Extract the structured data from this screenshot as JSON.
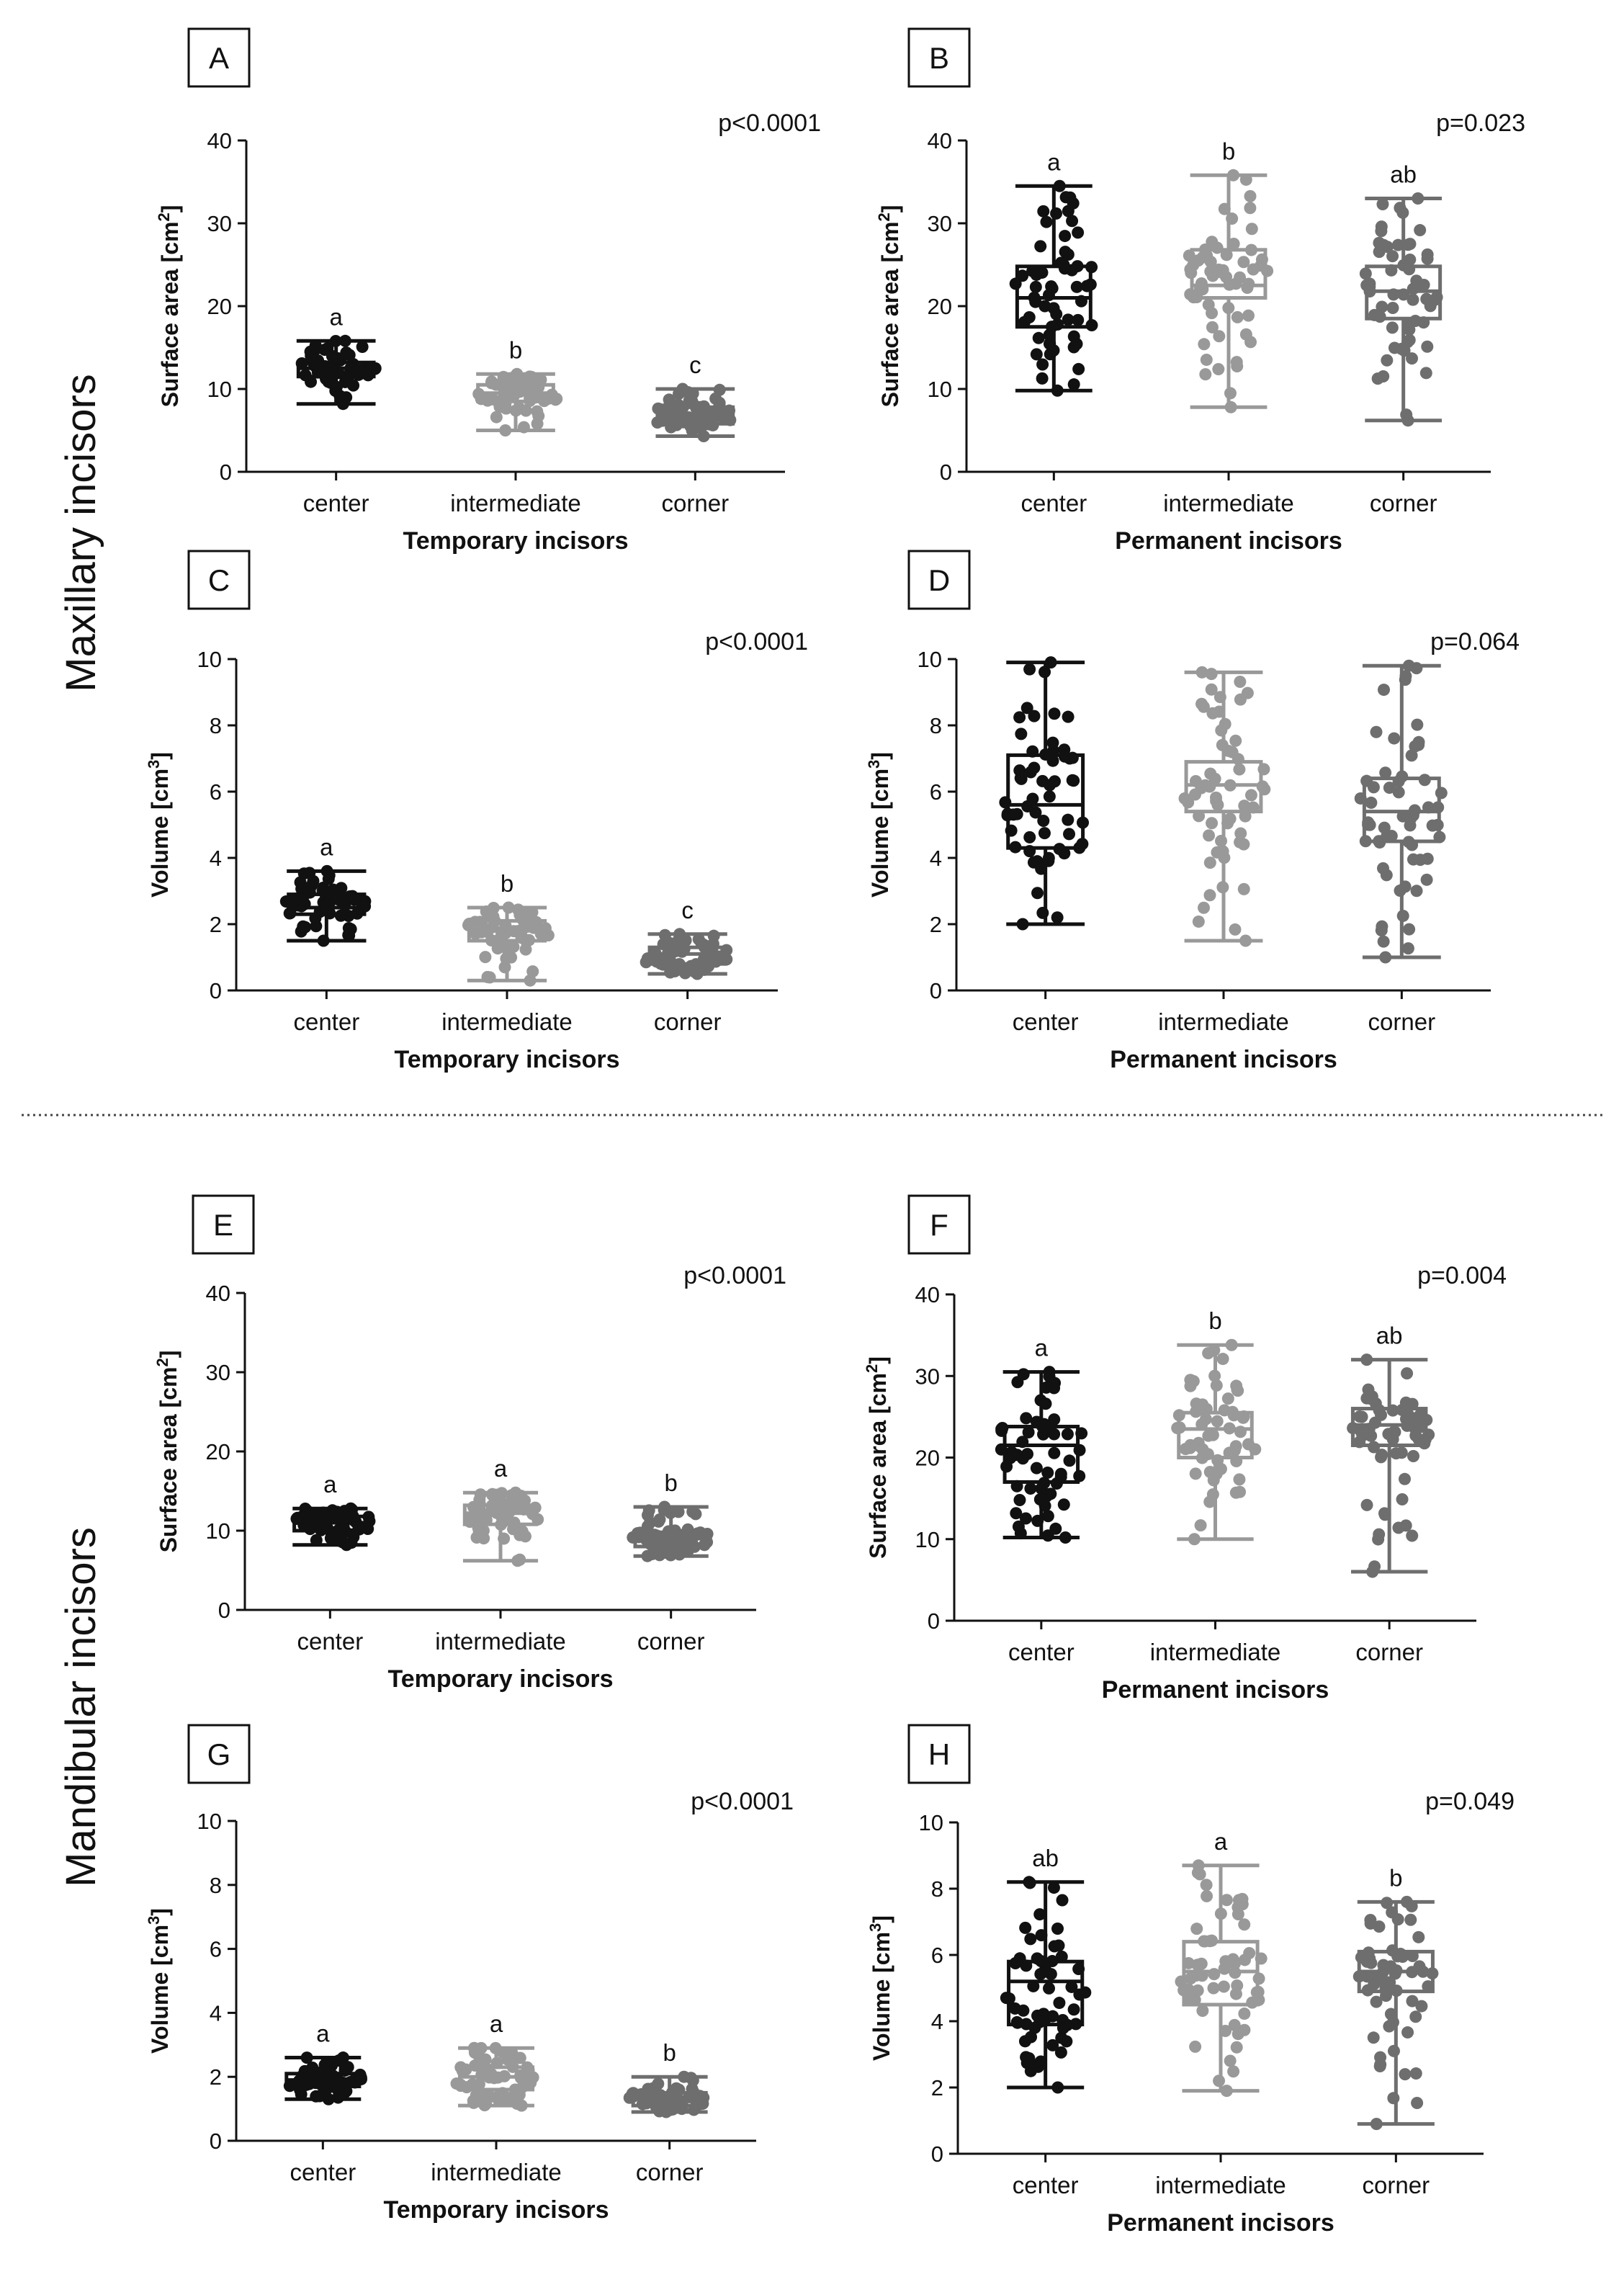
{
  "section_labels": {
    "maxillary": "Maxillary incisors",
    "mandibular": "Mandibular incisors"
  },
  "colors": {
    "center": "#111111",
    "intermediate": "#999999",
    "corner": "#6e6e6e"
  },
  "chart_data": [
    {
      "panel": "A",
      "type": "box-scatter",
      "p_value": "p<0.0001",
      "ylabel": "Surface area [cm",
      "ylabel_sup": "2",
      "ylabel_close": "]",
      "xlabel": "Temporary incisors",
      "categories": [
        "center",
        "intermediate",
        "corner"
      ],
      "ylim": [
        0,
        40
      ],
      "yticks": [
        0,
        10,
        20,
        30,
        40
      ],
      "letters": [
        "a",
        "b",
        "c"
      ],
      "series": [
        {
          "name": "center",
          "min": 8.2,
          "q1": 11.5,
          "median": 12.5,
          "q3": 13.2,
          "max": 15.8
        },
        {
          "name": "intermediate",
          "min": 5.0,
          "q1": 8.5,
          "median": 9.5,
          "q3": 10.5,
          "max": 11.8
        },
        {
          "name": "corner",
          "min": 4.3,
          "q1": 5.8,
          "median": 6.5,
          "q3": 7.8,
          "max": 10.0
        }
      ]
    },
    {
      "panel": "B",
      "type": "box-scatter",
      "p_value": "p=0.023",
      "ylabel": "Surface area [cm",
      "ylabel_sup": "2",
      "ylabel_close": "]",
      "xlabel": "Permanent incisors",
      "categories": [
        "center",
        "intermediate",
        "corner"
      ],
      "ylim": [
        0,
        40
      ],
      "yticks": [
        0,
        10,
        20,
        30,
        40
      ],
      "letters": [
        "a",
        "b",
        "ab"
      ],
      "series": [
        {
          "name": "center",
          "min": 9.8,
          "q1": 17.5,
          "median": 21.0,
          "q3": 24.8,
          "max": 34.5
        },
        {
          "name": "intermediate",
          "min": 7.8,
          "q1": 21.0,
          "median": 22.5,
          "q3": 26.8,
          "max": 35.8
        },
        {
          "name": "corner",
          "min": 6.2,
          "q1": 18.5,
          "median": 21.8,
          "q3": 24.8,
          "max": 33.0
        }
      ]
    },
    {
      "panel": "C",
      "type": "box-scatter",
      "p_value": "p<0.0001",
      "ylabel": "Volume [cm",
      "ylabel_sup": "3",
      "ylabel_close": "]",
      "xlabel": "Temporary incisors",
      "categories": [
        "center",
        "intermediate",
        "corner"
      ],
      "ylim": [
        0,
        10
      ],
      "yticks": [
        0,
        2,
        4,
        6,
        8,
        10
      ],
      "letters": [
        "a",
        "b",
        "c"
      ],
      "series": [
        {
          "name": "center",
          "min": 1.5,
          "q1": 2.3,
          "median": 2.5,
          "q3": 2.9,
          "max": 3.6
        },
        {
          "name": "intermediate",
          "min": 0.3,
          "q1": 1.5,
          "median": 1.8,
          "q3": 2.1,
          "max": 2.5
        },
        {
          "name": "corner",
          "min": 0.5,
          "q1": 0.8,
          "median": 1.1,
          "q3": 1.3,
          "max": 1.7
        }
      ]
    },
    {
      "panel": "D",
      "type": "box-scatter",
      "p_value": "p=0.064",
      "ylabel": "Volume [cm",
      "ylabel_sup": "3",
      "ylabel_close": "]",
      "xlabel": "Permanent incisors",
      "categories": [
        "center",
        "intermediate",
        "corner"
      ],
      "ylim": [
        0,
        10
      ],
      "yticks": [
        0,
        2,
        4,
        6,
        8,
        10
      ],
      "letters": [
        "",
        "",
        ""
      ],
      "series": [
        {
          "name": "center",
          "min": 2.0,
          "q1": 4.3,
          "median": 5.6,
          "q3": 7.1,
          "max": 9.9
        },
        {
          "name": "intermediate",
          "min": 1.5,
          "q1": 5.4,
          "median": 6.2,
          "q3": 6.9,
          "max": 9.6
        },
        {
          "name": "corner",
          "min": 1.0,
          "q1": 4.5,
          "median": 5.4,
          "q3": 6.4,
          "max": 9.8
        }
      ]
    },
    {
      "panel": "E",
      "type": "box-scatter",
      "p_value": "p<0.0001",
      "ylabel": "Surface area [cm",
      "ylabel_sup": "2",
      "ylabel_close": "]",
      "xlabel": "Temporary incisors",
      "categories": [
        "center",
        "intermediate",
        "corner"
      ],
      "ylim": [
        0,
        40
      ],
      "yticks": [
        0,
        10,
        20,
        30,
        40
      ],
      "letters": [
        "a",
        "a",
        "b"
      ],
      "series": [
        {
          "name": "center",
          "min": 8.2,
          "q1": 10.0,
          "median": 11.0,
          "q3": 11.8,
          "max": 12.8
        },
        {
          "name": "intermediate",
          "min": 6.2,
          "q1": 10.8,
          "median": 12.2,
          "q3": 13.2,
          "max": 14.8
        },
        {
          "name": "corner",
          "min": 6.8,
          "q1": 8.0,
          "median": 9.0,
          "q3": 9.8,
          "max": 13.0
        }
      ]
    },
    {
      "panel": "F",
      "type": "box-scatter",
      "p_value": "p=0.004",
      "ylabel": "Surface area [cm",
      "ylabel_sup": "2",
      "ylabel_close": "]",
      "xlabel": "Permanent incisors",
      "categories": [
        "center",
        "intermediate",
        "corner"
      ],
      "ylim": [
        0,
        40
      ],
      "yticks": [
        0,
        10,
        20,
        30,
        40
      ],
      "letters": [
        "a",
        "b",
        "ab"
      ],
      "series": [
        {
          "name": "center",
          "min": 10.2,
          "q1": 17.0,
          "median": 21.5,
          "q3": 23.8,
          "max": 30.5
        },
        {
          "name": "intermediate",
          "min": 10.0,
          "q1": 20.0,
          "median": 23.5,
          "q3": 25.5,
          "max": 33.8
        },
        {
          "name": "corner",
          "min": 6.0,
          "q1": 21.5,
          "median": 24.0,
          "q3": 26.0,
          "max": 32.0
        }
      ]
    },
    {
      "panel": "G",
      "type": "box-scatter",
      "p_value": "p<0.0001",
      "ylabel": "Volume [cm",
      "ylabel_sup": "3",
      "ylabel_close": "]",
      "xlabel": "Temporary incisors",
      "categories": [
        "center",
        "intermediate",
        "corner"
      ],
      "ylim": [
        0,
        10
      ],
      "yticks": [
        0,
        2,
        4,
        6,
        8,
        10
      ],
      "letters": [
        "a",
        "a",
        "b"
      ],
      "series": [
        {
          "name": "center",
          "min": 1.3,
          "q1": 1.7,
          "median": 1.9,
          "q3": 2.1,
          "max": 2.6
        },
        {
          "name": "intermediate",
          "min": 1.1,
          "q1": 1.6,
          "median": 2.0,
          "q3": 2.3,
          "max": 2.9
        },
        {
          "name": "corner",
          "min": 0.9,
          "q1": 1.1,
          "median": 1.3,
          "q3": 1.5,
          "max": 2.0
        }
      ]
    },
    {
      "panel": "H",
      "type": "box-scatter",
      "p_value": "p=0.049",
      "ylabel": "Volume [cm",
      "ylabel_sup": "3",
      "ylabel_close": "]",
      "xlabel": "Permanent incisors",
      "categories": [
        "center",
        "intermediate",
        "corner"
      ],
      "ylim": [
        0,
        10
      ],
      "yticks": [
        0,
        2,
        4,
        6,
        8,
        10
      ],
      "letters": [
        "ab",
        "a",
        "b"
      ],
      "series": [
        {
          "name": "center",
          "min": 2.0,
          "q1": 3.9,
          "median": 5.2,
          "q3": 5.8,
          "max": 8.2
        },
        {
          "name": "intermediate",
          "min": 1.9,
          "q1": 4.5,
          "median": 5.5,
          "q3": 6.4,
          "max": 8.7
        },
        {
          "name": "corner",
          "min": 0.9,
          "q1": 4.9,
          "median": 5.5,
          "q3": 6.1,
          "max": 7.6
        }
      ]
    }
  ]
}
